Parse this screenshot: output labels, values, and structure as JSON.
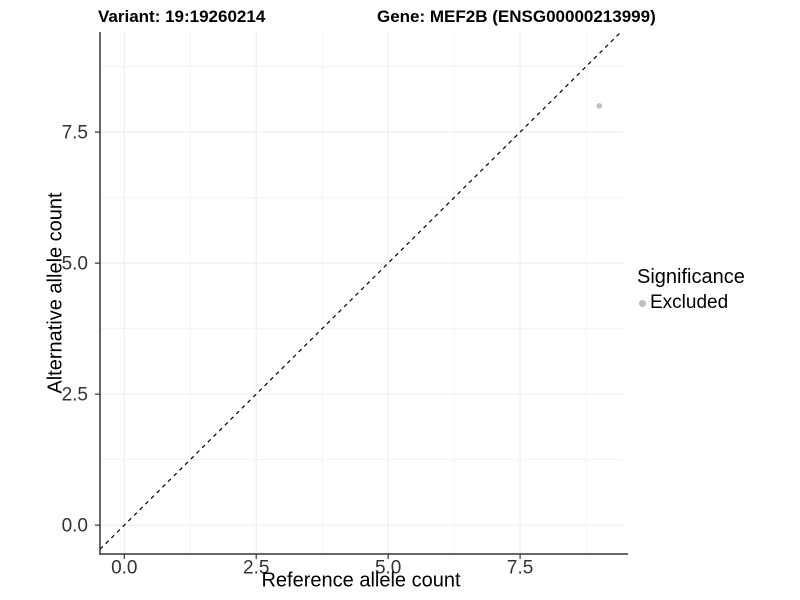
{
  "chart_data": {
    "type": "scatter",
    "title_left": "Variant: 19:19260214",
    "title_right": "Gene: MEF2B (ENSG00000213999)",
    "xlabel": "Reference allele count",
    "ylabel": "Alternative allele count",
    "xlim": [
      -0.46,
      9.45
    ],
    "ylim": [
      -0.55,
      9.41
    ],
    "major_ticks": [
      0,
      2.5,
      5,
      7.5
    ],
    "tick_labels": [
      "0.0",
      "2.5",
      "5.0",
      "7.5"
    ],
    "minor_ticks": [
      1.25,
      3.75,
      6.25,
      8.75
    ],
    "points": [
      {
        "x": 9,
        "y": 8,
        "significance": "Excluded"
      }
    ],
    "identity_line": {
      "slope": 1,
      "intercept": 0,
      "style": "dashed"
    },
    "legend": {
      "title": "Significance",
      "position": "right",
      "entries": [
        {
          "label": "Excluded",
          "color": "#bebebe"
        }
      ]
    },
    "grid": true,
    "colors": {
      "point": "#bebebe",
      "grid_major": "#ebebeb",
      "grid_minor": "#f3f3f3",
      "axis_line": "#333333",
      "tick_label": "#333333",
      "dashed_line": "#000000",
      "background": "#ffffff"
    }
  }
}
